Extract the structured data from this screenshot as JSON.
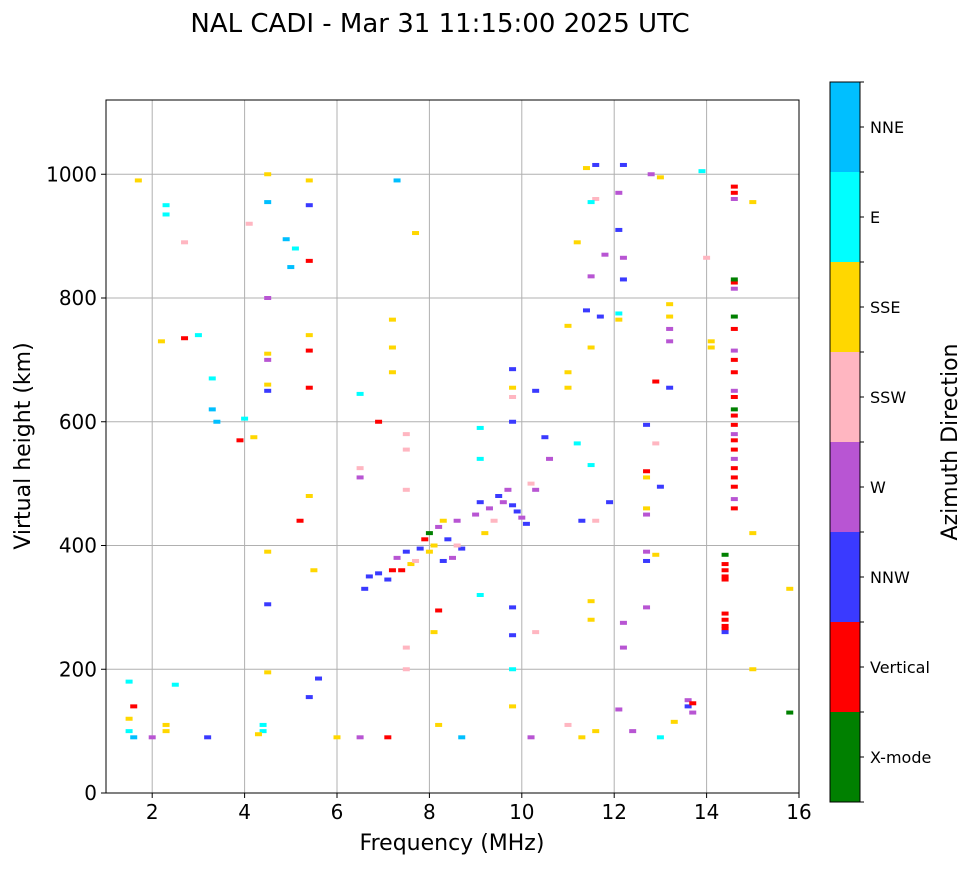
{
  "chart_data": {
    "type": "scatter",
    "title": "NAL CADI - Mar 31 11:15:00 2025 UTC",
    "xlabel": "Frequency (MHz)",
    "ylabel": "Virtual height (km)",
    "xlim": [
      1,
      16
    ],
    "ylim": [
      0,
      1120
    ],
    "xticks": [
      2,
      4,
      6,
      8,
      10,
      12,
      14,
      16
    ],
    "yticks": [
      0,
      200,
      400,
      600,
      800,
      1000
    ],
    "grid": true,
    "colorbar": {
      "label": "Azimuth Direction",
      "categories": [
        "X-mode",
        "Vertical",
        "NNW",
        "W",
        "SSW",
        "SSE",
        "E",
        "NNE"
      ],
      "colors": [
        "#008000",
        "#ff0000",
        "#3a3aff",
        "#b855d3",
        "#ffb6c1",
        "#ffd700",
        "#00ffff",
        "#00bfff"
      ]
    },
    "points_format": [
      "frequency_mhz",
      "virtual_height_km",
      "category_index"
    ],
    "points": [
      [
        14.6,
        460,
        1
      ],
      [
        14.6,
        475,
        3
      ],
      [
        14.6,
        495,
        1
      ],
      [
        14.6,
        510,
        1
      ],
      [
        14.6,
        525,
        1
      ],
      [
        14.6,
        540,
        3
      ],
      [
        14.6,
        555,
        1
      ],
      [
        14.6,
        570,
        1
      ],
      [
        14.6,
        580,
        3
      ],
      [
        14.6,
        595,
        1
      ],
      [
        14.6,
        610,
        1
      ],
      [
        14.6,
        620,
        0
      ],
      [
        14.6,
        640,
        1
      ],
      [
        14.6,
        650,
        3
      ],
      [
        14.6,
        680,
        1
      ],
      [
        14.6,
        700,
        1
      ],
      [
        14.6,
        715,
        3
      ],
      [
        14.6,
        750,
        1
      ],
      [
        14.6,
        770,
        0
      ],
      [
        14.6,
        815,
        3
      ],
      [
        14.6,
        825,
        1
      ],
      [
        14.6,
        830,
        0
      ],
      [
        14.6,
        960,
        3
      ],
      [
        14.6,
        970,
        1
      ],
      [
        14.6,
        980,
        1
      ],
      [
        14.4,
        385,
        0
      ],
      [
        14.4,
        370,
        1
      ],
      [
        14.4,
        360,
        1
      ],
      [
        14.4,
        350,
        1
      ],
      [
        14.4,
        345,
        1
      ],
      [
        14.4,
        290,
        1
      ],
      [
        14.4,
        280,
        1
      ],
      [
        14.4,
        270,
        1
      ],
      [
        14.4,
        265,
        1
      ],
      [
        14.4,
        260,
        2
      ],
      [
        7.3,
        380,
        3
      ],
      [
        7.4,
        360,
        1
      ],
      [
        7.5,
        390,
        2
      ],
      [
        7.6,
        370,
        5
      ],
      [
        7.8,
        395,
        2
      ],
      [
        7.9,
        410,
        1
      ],
      [
        8.0,
        420,
        0
      ],
      [
        8.1,
        400,
        5
      ],
      [
        8.2,
        430,
        3
      ],
      [
        8.3,
        440,
        5
      ],
      [
        8.4,
        410,
        2
      ],
      [
        8.5,
        380,
        3
      ],
      [
        8.6,
        440,
        3
      ],
      [
        8.7,
        395,
        2
      ],
      [
        9.0,
        450,
        3
      ],
      [
        9.1,
        470,
        2
      ],
      [
        9.3,
        460,
        3
      ],
      [
        9.5,
        480,
        2
      ],
      [
        9.6,
        470,
        3
      ],
      [
        9.7,
        490,
        3
      ],
      [
        9.8,
        465,
        2
      ],
      [
        9.9,
        455,
        2
      ],
      [
        10.0,
        445,
        3
      ],
      [
        10.1,
        435,
        2
      ],
      [
        6.9,
        355,
        2
      ],
      [
        6.7,
        350,
        2
      ],
      [
        6.6,
        330,
        2
      ],
      [
        7.1,
        345,
        2
      ],
      [
        7.2,
        360,
        1
      ],
      [
        7.7,
        375,
        4
      ],
      [
        8.0,
        390,
        5
      ],
      [
        8.3,
        375,
        2
      ],
      [
        8.6,
        400,
        4
      ],
      [
        9.2,
        420,
        5
      ],
      [
        9.4,
        440,
        4
      ],
      [
        10.3,
        490,
        3
      ],
      [
        10.2,
        500,
        4
      ],
      [
        1.5,
        100,
        6
      ],
      [
        1.5,
        120,
        5
      ],
      [
        1.6,
        140,
        1
      ],
      [
        1.5,
        180,
        6
      ],
      [
        1.6,
        90,
        7
      ],
      [
        2.3,
        100,
        5
      ],
      [
        2.3,
        110,
        5
      ],
      [
        2.0,
        90,
        3
      ],
      [
        2.5,
        175,
        6
      ],
      [
        4.4,
        100,
        6
      ],
      [
        4.4,
        110,
        6
      ],
      [
        4.3,
        95,
        5
      ],
      [
        3.2,
        90,
        2
      ],
      [
        1.7,
        990,
        5
      ],
      [
        2.3,
        950,
        6
      ],
      [
        2.3,
        935,
        6
      ],
      [
        2.7,
        890,
        4
      ],
      [
        2.2,
        730,
        5
      ],
      [
        2.7,
        735,
        1
      ],
      [
        3.0,
        740,
        6
      ],
      [
        3.3,
        670,
        6
      ],
      [
        3.3,
        620,
        7
      ],
      [
        3.4,
        600,
        7
      ],
      [
        3.9,
        570,
        1
      ],
      [
        4.2,
        575,
        5
      ],
      [
        4.0,
        605,
        6
      ],
      [
        4.5,
        1000,
        5
      ],
      [
        4.5,
        955,
        7
      ],
      [
        4.1,
        920,
        4
      ],
      [
        4.5,
        800,
        3
      ],
      [
        4.5,
        650,
        2
      ],
      [
        4.5,
        660,
        5
      ],
      [
        4.5,
        700,
        3
      ],
      [
        4.5,
        710,
        5
      ],
      [
        5.4,
        990,
        5
      ],
      [
        5.4,
        950,
        2
      ],
      [
        5.4,
        860,
        1
      ],
      [
        5.0,
        850,
        7
      ],
      [
        5.1,
        880,
        6
      ],
      [
        4.9,
        895,
        7
      ],
      [
        5.4,
        740,
        5
      ],
      [
        5.4,
        715,
        1
      ],
      [
        5.4,
        655,
        1
      ],
      [
        5.4,
        480,
        5
      ],
      [
        5.2,
        440,
        1
      ],
      [
        5.5,
        360,
        5
      ],
      [
        4.5,
        390,
        5
      ],
      [
        4.5,
        305,
        2
      ],
      [
        4.5,
        195,
        5
      ],
      [
        5.6,
        185,
        2
      ],
      [
        5.4,
        155,
        2
      ],
      [
        6.0,
        90,
        5
      ],
      [
        6.5,
        90,
        3
      ],
      [
        7.1,
        90,
        1
      ],
      [
        6.5,
        645,
        6
      ],
      [
        6.9,
        600,
        1
      ],
      [
        6.5,
        525,
        4
      ],
      [
        6.5,
        510,
        3
      ],
      [
        7.5,
        580,
        4
      ],
      [
        7.5,
        555,
        4
      ],
      [
        7.5,
        490,
        4
      ],
      [
        7.3,
        990,
        7
      ],
      [
        7.7,
        905,
        5
      ],
      [
        7.2,
        765,
        5
      ],
      [
        7.2,
        720,
        5
      ],
      [
        7.2,
        680,
        5
      ],
      [
        7.5,
        200,
        4
      ],
      [
        7.5,
        235,
        4
      ],
      [
        8.2,
        295,
        1
      ],
      [
        8.1,
        260,
        5
      ],
      [
        8.2,
        110,
        5
      ],
      [
        8.7,
        90,
        7
      ],
      [
        9.1,
        320,
        6
      ],
      [
        9.1,
        590,
        6
      ],
      [
        9.1,
        540,
        6
      ],
      [
        9.8,
        685,
        2
      ],
      [
        9.8,
        655,
        5
      ],
      [
        9.8,
        640,
        4
      ],
      [
        9.8,
        600,
        2
      ],
      [
        9.8,
        300,
        2
      ],
      [
        9.8,
        255,
        2
      ],
      [
        9.8,
        140,
        5
      ],
      [
        9.8,
        200,
        6
      ],
      [
        10.2,
        90,
        3
      ],
      [
        10.3,
        260,
        4
      ],
      [
        10.3,
        650,
        2
      ],
      [
        10.5,
        575,
        2
      ],
      [
        10.6,
        540,
        3
      ],
      [
        11.0,
        755,
        5
      ],
      [
        11.0,
        680,
        5
      ],
      [
        11.0,
        655,
        5
      ],
      [
        11.2,
        890,
        5
      ],
      [
        11.4,
        1010,
        5
      ],
      [
        11.6,
        1015,
        2
      ],
      [
        12.2,
        1015,
        2
      ],
      [
        12.8,
        1000,
        3
      ],
      [
        13.0,
        995,
        5
      ],
      [
        13.9,
        1005,
        6
      ],
      [
        11.6,
        960,
        4
      ],
      [
        11.5,
        955,
        6
      ],
      [
        12.1,
        970,
        3
      ],
      [
        11.8,
        870,
        3
      ],
      [
        12.1,
        910,
        2
      ],
      [
        12.2,
        865,
        3
      ],
      [
        12.2,
        830,
        2
      ],
      [
        11.5,
        835,
        3
      ],
      [
        11.4,
        780,
        2
      ],
      [
        11.7,
        770,
        2
      ],
      [
        12.1,
        775,
        6
      ],
      [
        12.1,
        765,
        5
      ],
      [
        11.5,
        720,
        5
      ],
      [
        13.2,
        790,
        5
      ],
      [
        13.2,
        770,
        5
      ],
      [
        13.2,
        750,
        3
      ],
      [
        13.2,
        730,
        3
      ],
      [
        12.9,
        665,
        1
      ],
      [
        13.2,
        655,
        2
      ],
      [
        12.7,
        595,
        2
      ],
      [
        12.9,
        565,
        4
      ],
      [
        12.7,
        520,
        1
      ],
      [
        12.7,
        510,
        5
      ],
      [
        12.7,
        460,
        5
      ],
      [
        12.7,
        450,
        3
      ],
      [
        13.0,
        495,
        2
      ],
      [
        12.7,
        390,
        3
      ],
      [
        12.9,
        385,
        5
      ],
      [
        12.7,
        375,
        2
      ],
      [
        12.7,
        300,
        3
      ],
      [
        12.2,
        275,
        3
      ],
      [
        12.2,
        235,
        3
      ],
      [
        11.5,
        310,
        5
      ],
      [
        11.5,
        280,
        5
      ],
      [
        12.1,
        135,
        3
      ],
      [
        12.4,
        100,
        3
      ],
      [
        13.0,
        90,
        6
      ],
      [
        13.3,
        115,
        5
      ],
      [
        13.6,
        150,
        3
      ],
      [
        13.6,
        140,
        2
      ],
      [
        13.7,
        130,
        3
      ],
      [
        13.7,
        145,
        1
      ],
      [
        14.1,
        730,
        5
      ],
      [
        14.1,
        720,
        5
      ],
      [
        14.0,
        865,
        4
      ],
      [
        15.0,
        955,
        5
      ],
      [
        15.0,
        420,
        5
      ],
      [
        15.0,
        200,
        5
      ],
      [
        15.8,
        330,
        5
      ],
      [
        15.8,
        130,
        0
      ],
      [
        11.3,
        90,
        5
      ],
      [
        11.0,
        110,
        4
      ],
      [
        11.6,
        100,
        5
      ],
      [
        11.3,
        440,
        2
      ],
      [
        11.6,
        440,
        4
      ],
      [
        11.9,
        470,
        2
      ],
      [
        11.2,
        565,
        6
      ],
      [
        11.5,
        530,
        6
      ]
    ]
  }
}
